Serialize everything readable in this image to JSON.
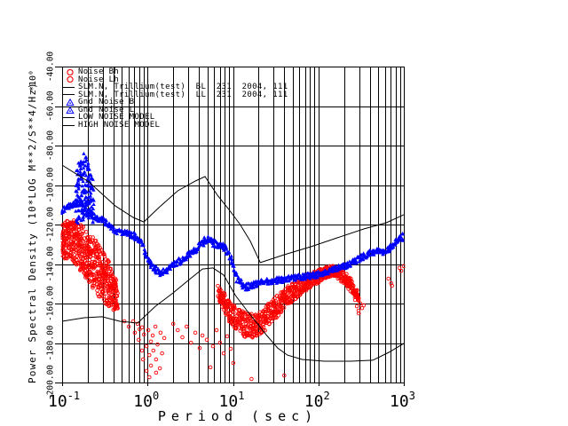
{
  "colors": {
    "red": "#ff0000",
    "blue": "#0000ff",
    "line": "#000000",
    "background": "#ffffff"
  },
  "legend": {
    "rows": [
      {
        "marker": "open-circle",
        "color": "#ff0000",
        "label": "Noise Bh"
      },
      {
        "marker": "open-circle",
        "color": "#ff0000",
        "label": "Noise Lh"
      },
      {
        "marker": "line",
        "color": "#000000",
        "label": "SLM.N, Trillium(test)  BL  231  2004, 111"
      },
      {
        "marker": "line",
        "color": "#000000",
        "label": "SLM.N, Trillium(test)  LL  231  2004, 111"
      },
      {
        "marker": "triangle",
        "color": "#0000ff",
        "label": "Gnd Noise B"
      },
      {
        "marker": "triangle",
        "color": "#0000ff",
        "label": "Gnd Noise L"
      },
      {
        "marker": "line",
        "color": "#000000",
        "label": "LOW NOISE MODEL"
      },
      {
        "marker": "line",
        "color": "#000000",
        "label": "HIGH NOISE MODEL"
      }
    ]
  },
  "axes": {
    "x": {
      "label": "Period (sec)",
      "scale": "log",
      "ticks": [
        {
          "value": 0.1,
          "base": "10",
          "exp": "-1"
        },
        {
          "value": 1,
          "base": "10",
          "exp": "0"
        },
        {
          "value": 10,
          "base": "10",
          "exp": "1"
        },
        {
          "value": 100,
          "base": "10",
          "exp": "2"
        },
        {
          "value": 1000,
          "base": "10",
          "exp": "3"
        }
      ]
    },
    "y": {
      "label": "Power Spectral Density (10*LOG M**2/S**4/Hz)",
      "scale_label": "*10⁰",
      "ticks": [
        {
          "label": "-200.00",
          "value": -200
        },
        {
          "label": "-180.00",
          "value": -180
        },
        {
          "label": "-160.00",
          "value": -160
        },
        {
          "label": "-140.00",
          "value": -140
        },
        {
          "label": "-120.00",
          "value": -120
        },
        {
          "label": "-100.00",
          "value": -100
        },
        {
          "label": "-80.00",
          "value": -80
        },
        {
          "label": "-60.00",
          "value": -60
        },
        {
          "label": "-40.00",
          "value": -40
        }
      ]
    }
  },
  "chart_data": {
    "type": "scatter",
    "xlabel": "Period (sec)",
    "ylabel": "Power Spectral Density (10*LOG M**2/S**4/Hz)",
    "xscale": "log",
    "xlim": [
      0.1,
      1000
    ],
    "ylim": [
      -200,
      -40
    ],
    "grid": "vertical lines at every log minor tick, horizontal lines every 20 dB",
    "legend_position": "top-left, transparent over grid",
    "series": [
      {
        "name": "Noise Bh",
        "type": "band",
        "marker": "open-circle",
        "color": "#ff0000",
        "density": 9,
        "bands": [
          {
            "density": 9,
            "points": [
              [
                0.1,
                -128.5,
                9
              ],
              [
                0.121,
                -127.6,
                10
              ],
              [
                0.143,
                -129.0,
                11
              ],
              [
                0.169,
                -132.1,
                12
              ],
              [
                0.205,
                -136.6,
                12.5
              ],
              [
                0.248,
                -141.1,
                13.5
              ],
              [
                0.294,
                -145.6,
                13.5
              ],
              [
                0.347,
                -150.1,
                11.5
              ],
              [
                0.401,
                -154.6,
                9
              ],
              [
                0.452,
                -158.2,
                6.5
              ]
            ]
          }
        ],
        "outliers": [
          [
            0.535,
            -169.0
          ],
          [
            0.603,
            -171.7
          ],
          [
            0.679,
            -169.0
          ],
          [
            0.71,
            -174.8
          ],
          [
            0.766,
            -170.3
          ],
          [
            0.79,
            -178.4
          ],
          [
            0.81,
            -173.0
          ],
          [
            0.863,
            -172.1
          ],
          [
            0.863,
            -183.8
          ],
          [
            0.887,
            -188.3
          ],
          [
            0.91,
            -175.7
          ],
          [
            0.973,
            -181.6
          ],
          [
            0.973,
            -194.1
          ],
          [
            1.02,
            -173.5
          ],
          [
            1.05,
            -186.1
          ],
          [
            1.05,
            -197.3
          ],
          [
            1.096,
            -179.3
          ],
          [
            1.096,
            -191.4
          ],
          [
            1.15,
            -176.2
          ],
          [
            1.17,
            -183.8
          ],
          [
            1.236,
            -171.7
          ],
          [
            1.26,
            -188.3
          ],
          [
            1.26,
            -195.0
          ],
          [
            1.31,
            -180.7
          ],
          [
            1.393,
            -192.8
          ],
          [
            1.42,
            -174.8
          ],
          [
            1.48,
            -185.2
          ],
          [
            1.57,
            -177.5
          ],
          [
            2.0,
            -170.3
          ],
          [
            2.26,
            -173.5
          ],
          [
            2.56,
            -177.1
          ],
          [
            2.87,
            -171.7
          ],
          [
            3.23,
            -179.8
          ],
          [
            3.63,
            -174.8
          ],
          [
            4.08,
            -182.5
          ],
          [
            4.39,
            -176.2
          ],
          [
            4.94,
            -178.4
          ],
          [
            5.45,
            -192.3
          ],
          [
            5.84,
            -181.6
          ],
          [
            6.42,
            -173.5
          ],
          [
            7.06,
            -179.8
          ],
          [
            7.78,
            -185.2
          ],
          [
            8.56,
            -176.6
          ],
          [
            9.42,
            -182.9
          ],
          [
            10.1,
            -190.1
          ]
        ]
      },
      {
        "name": "Noise Lh",
        "type": "band",
        "marker": "open-circle",
        "color": "#ff0000",
        "density": 5,
        "bands": [
          {
            "density": 5,
            "points": [
              [
                6.75,
                -154.6,
                3.6
              ],
              [
                7.8,
                -159.1,
                4.5
              ],
              [
                9.0,
                -163.6,
                5.4
              ],
              [
                10.7,
                -167.2,
                5.8
              ],
              [
                12.7,
                -169.9,
                6.3
              ],
              [
                15.2,
                -171.2,
                6.3
              ],
              [
                18.4,
                -171.2,
                6.3
              ],
              [
                22.4,
                -168.5,
                6.3
              ],
              [
                27.8,
                -164.5,
                5.8
              ],
              [
                35.2,
                -160.0,
                5.4
              ],
              [
                44.9,
                -155.9,
                4.9
              ],
              [
                57.3,
                -152.4,
                4.5
              ],
              [
                72.9,
                -149.2,
                4.0
              ],
              [
                92.3,
                -147.0,
                3.6
              ],
              [
                111,
                -145.2,
                3.1
              ],
              [
                132,
                -143.8,
                3.1
              ],
              [
                153,
                -143.4,
                2.7
              ],
              [
                175,
                -144.7,
                3.1
              ],
              [
                203,
                -147.0,
                3.1
              ],
              [
                235,
                -150.1,
                3.1
              ],
              [
                265,
                -153.7,
                2.7
              ],
              [
                300,
                -157.3,
                2.2
              ]
            ]
          }
        ],
        "outliers": [
          [
            16.5,
            -198.2
          ],
          [
            39.9,
            -196.4
          ],
          [
            257,
            -154.6
          ],
          [
            269,
            -158.2
          ],
          [
            282,
            -161.4
          ],
          [
            295,
            -163.6
          ],
          [
            297,
            -165.0
          ],
          [
            310,
            -160.0
          ],
          [
            325,
            -162.3
          ],
          [
            340,
            -160.9
          ],
          [
            661,
            -147.4
          ],
          [
            711,
            -149.7
          ],
          [
            728,
            -151.0
          ],
          [
            888,
            -142.0
          ],
          [
            932,
            -143.4
          ],
          [
            1000,
            -141.1
          ]
        ]
      },
      {
        "name": "Gnd Noise B",
        "type": "band",
        "marker": "triangle",
        "color": "#0000ff",
        "density": 2,
        "bands": [
          {
            "density": 2,
            "points": [
              [
                0.1,
                -112.8,
                1.6
              ],
              [
                0.127,
                -110.6,
                1.6
              ],
              [
                0.162,
                -108.8,
                1.8
              ],
              [
                0.205,
                -114.2,
                1.8
              ],
              [
                0.261,
                -116.9,
                1.6
              ],
              [
                0.331,
                -118.7,
                1.6
              ],
              [
                0.42,
                -123.1,
                1.6
              ],
              [
                0.535,
                -124.0,
                1.5
              ],
              [
                0.679,
                -125.4,
                1.5
              ],
              [
                0.822,
                -128.5,
                1.8
              ],
              [
                0.97,
                -135.7,
                2.2
              ],
              [
                1.15,
                -141.1,
                2.2
              ],
              [
                1.39,
                -144.7,
                2.0
              ],
              [
                1.68,
                -143.8,
                1.8
              ],
              [
                2.09,
                -139.8,
                1.8
              ],
              [
                2.66,
                -137.1,
                1.6
              ],
              [
                3.37,
                -133.9,
                1.6
              ],
              [
                4.28,
                -129.9,
                1.8
              ],
              [
                4.94,
                -127.2,
                1.8
              ],
              [
                5.84,
                -129.4,
                1.8
              ],
              [
                7.42,
                -130.8,
                1.8
              ],
              [
                8.78,
                -133.9,
                2.0
              ],
              [
                9.9,
                -140.2,
                2.4
              ]
            ]
          },
          {
            "density": 8,
            "points": [
              [
                0.147,
                -107.4,
                13
              ],
              [
                0.162,
                -102.9,
                16
              ],
              [
                0.178,
                -100.7,
                17
              ],
              [
                0.196,
                -102.0,
                16
              ],
              [
                0.215,
                -105.2,
                13
              ],
              [
                0.237,
                -110.6,
                10
              ]
            ]
          }
        ],
        "outliers": []
      },
      {
        "name": "Gnd Noise L",
        "type": "band",
        "marker": "triangle",
        "color": "#0000ff",
        "density": 2,
        "bands": [
          {
            "density": 2,
            "points": [
              [
                9.9,
                -140.2,
                2.2
              ],
              [
                11.5,
                -148.3,
                2.2
              ],
              [
                13.6,
                -151.9,
                1.8
              ],
              [
                17.2,
                -150.5,
                1.6
              ],
              [
                21.8,
                -149.2,
                1.5
              ],
              [
                31.3,
                -148.3,
                1.5
              ],
              [
                44.9,
                -147.4,
                1.5
              ],
              [
                64.4,
                -146.5,
                1.5
              ],
              [
                92.3,
                -145.6,
                1.5
              ],
              [
                132,
                -143.8,
                1.5
              ],
              [
                175,
                -142.0,
                1.5
              ],
              [
                239,
                -139.8,
                1.6
              ],
              [
                303,
                -137.1,
                1.6
              ],
              [
                384,
                -134.8,
                1.6
              ],
              [
                478,
                -133.5,
                1.6
              ],
              [
                576,
                -133.9,
                1.6
              ],
              [
                669,
                -132.1,
                1.6
              ],
              [
                791,
                -129.4,
                1.8
              ],
              [
                888,
                -127.6,
                1.8
              ],
              [
                1000,
                -125.8,
                1.8
              ]
            ]
          }
        ],
        "outliers": []
      },
      {
        "name": "LOW NOISE MODEL",
        "type": "line",
        "color": "#000000",
        "points": [
          [
            0.1,
            -169.0
          ],
          [
            0.182,
            -167.2
          ],
          [
            0.294,
            -166.7
          ],
          [
            0.474,
            -169.0
          ],
          [
            0.766,
            -169.9
          ],
          [
            1.236,
            -161.4
          ],
          [
            1.995,
            -154.6
          ],
          [
            3.07,
            -147.9
          ],
          [
            4.39,
            -142.5
          ],
          [
            5.84,
            -142.0
          ],
          [
            7.8,
            -145.6
          ],
          [
            10.7,
            -155.9
          ],
          [
            14.6,
            -163.6
          ],
          [
            19.4,
            -170.3
          ],
          [
            24.9,
            -176.2
          ],
          [
            33.3,
            -182.5
          ],
          [
            43.4,
            -186.1
          ],
          [
            64.4,
            -188.3
          ],
          [
            117,
            -189.2
          ],
          [
            239,
            -189.2
          ],
          [
            433,
            -188.7
          ],
          [
            669,
            -184.7
          ],
          [
            1000,
            -180.2
          ]
        ]
      },
      {
        "name": "HIGH NOISE MODEL",
        "type": "line",
        "color": "#000000",
        "points": [
          [
            0.1,
            -89.9
          ],
          [
            0.205,
            -98.4
          ],
          [
            0.42,
            -110.6
          ],
          [
            0.679,
            -116.4
          ],
          [
            0.904,
            -118.7
          ],
          [
            1.39,
            -111.0
          ],
          [
            2.26,
            -102.9
          ],
          [
            3.63,
            -98.0
          ],
          [
            4.71,
            -95.7
          ],
          [
            6.6,
            -105.2
          ],
          [
            8.78,
            -111.9
          ],
          [
            11.96,
            -119.6
          ],
          [
            16.0,
            -128.5
          ],
          [
            20.9,
            -139.3
          ],
          [
            39.9,
            -135.3
          ],
          [
            82.2,
            -131.2
          ],
          [
            167,
            -126.7
          ],
          [
            342,
            -122.2
          ],
          [
            622,
            -119.1
          ],
          [
            1000,
            -115.0
          ]
        ]
      }
    ]
  }
}
